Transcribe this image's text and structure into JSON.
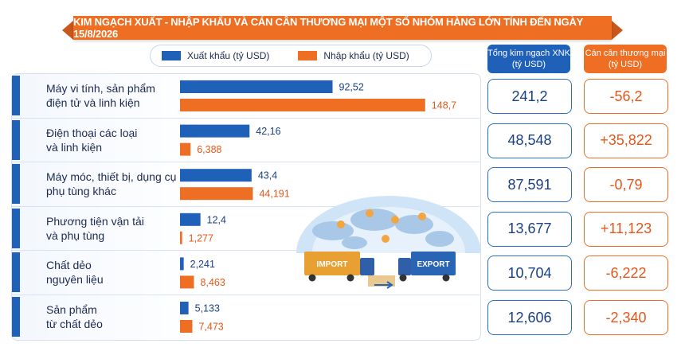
{
  "title": "KIM NGẠCH XUẤT - NHẬP KHẨU VÀ CÁN CÂN THƯƠNG MẠI MỘT SỐ NHÓM HÀNG LỚN TÍNH ĐẾN NGÀY 15/8/2026",
  "legend": {
    "export_label": "Xuất khẩu (tỷ USD)",
    "import_label": "Nhập khẩu (tỷ USD)"
  },
  "columns": {
    "total_line1": "Tổng kim ngạch XNK",
    "total_line2": "(tỷ USD)",
    "balance_line1": "Cán cân thương mại",
    "balance_line2": "(tỷ USD)"
  },
  "colors": {
    "export": "#1f61b8",
    "import": "#ee6f23",
    "export_text": "#1b3f85",
    "import_text": "#e2581a"
  },
  "illustration": {
    "import_sign": "IMPORT",
    "export_sign": "EXPORT"
  },
  "chart_data": {
    "type": "bar",
    "orientation": "horizontal",
    "categories": [
      [
        "Máy vi tính, sản phẩm",
        "điện tử và linh kiện"
      ],
      [
        "Điện thoại các loại",
        "và linh kiện"
      ],
      [
        "Máy móc, thiết bị, dụng cụ",
        "phụ tùng khác"
      ],
      [
        "Phương tiện vận tải",
        "và phụ tùng"
      ],
      [
        "Chất dẻo",
        "nguyên liệu"
      ],
      [
        "Sản phẩm",
        "từ chất dẻo"
      ]
    ],
    "series": [
      {
        "name": "Xuất khẩu (tỷ USD)",
        "values": [
          92.52,
          42.16,
          43.4,
          12.4,
          2.241,
          5.133
        ],
        "labels": [
          "92,52",
          "42,16",
          "43,4",
          "12,4",
          "2,241",
          "5,133"
        ]
      },
      {
        "name": "Nhập khẩu (tỷ USD)",
        "values": [
          148.7,
          6.388,
          44.191,
          1.277,
          8.463,
          7.473
        ],
        "labels": [
          "148,7",
          "6,388",
          "44,191",
          "1,277",
          "8,463",
          "7,473"
        ]
      }
    ],
    "total_trade": [
      "241,2",
      "48,548",
      "87,591",
      "13,677",
      "10,704",
      "12,606"
    ],
    "trade_balance": [
      "-56,2",
      "+35,822",
      "-0,79",
      "+11,123",
      "-6,222",
      "-2,340"
    ],
    "xlim": [
      0,
      160
    ],
    "grid": false,
    "legend_position": "top"
  }
}
